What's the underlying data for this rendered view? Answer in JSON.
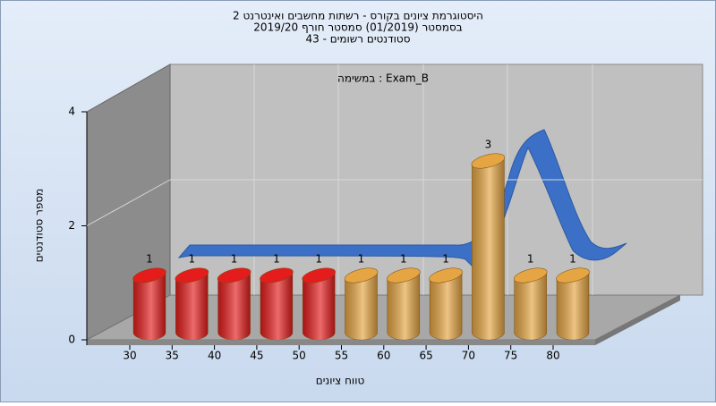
{
  "chart_data": {
    "type": "bar",
    "title": [
      "היסטוגרמת ציונים בקורס - רשתות מחשבים ואינטרנט 2",
      "בסמסטר  (01/2019)  סמסטר חורף 2019/20",
      "סטודנטים רשומים - 43"
    ],
    "subtitle": "במשימה : Exam_B",
    "x_label": "טווח ציונים",
    "y_label": "מספר סטודנטים",
    "categories": [
      "30",
      "35",
      "40",
      "45",
      "50",
      "55",
      "60",
      "65",
      "70",
      "75",
      "80"
    ],
    "values": [
      1,
      1,
      1,
      1,
      1,
      1,
      1,
      1,
      3,
      1,
      1
    ],
    "colors": [
      "#e41c1c",
      "#e41c1c",
      "#e41c1c",
      "#e41c1c",
      "#e41c1c",
      "#e5a543",
      "#e5a543",
      "#e5a543",
      "#e5a543",
      "#e5a543",
      "#e5a543"
    ],
    "ylim": [
      0,
      4
    ],
    "yticks": [
      0,
      2,
      4
    ],
    "grid": true
  }
}
